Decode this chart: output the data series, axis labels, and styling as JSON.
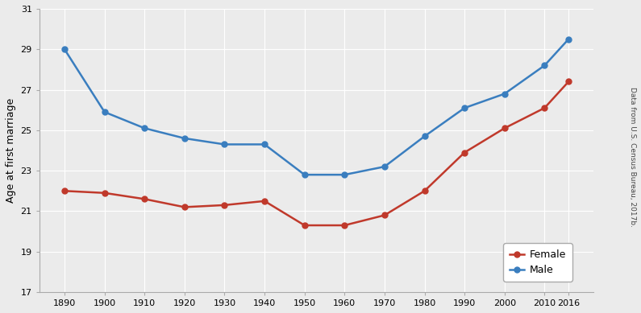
{
  "years": [
    1890,
    1900,
    1910,
    1920,
    1930,
    1940,
    1950,
    1960,
    1970,
    1980,
    1990,
    2000,
    2010,
    2016
  ],
  "female": [
    22.0,
    21.9,
    21.6,
    21.2,
    21.3,
    21.5,
    20.3,
    20.3,
    20.8,
    22.0,
    23.9,
    25.1,
    26.1,
    27.4
  ],
  "male": [
    29.0,
    25.9,
    25.1,
    24.6,
    24.3,
    24.3,
    22.8,
    22.8,
    23.2,
    24.7,
    26.1,
    26.8,
    28.2,
    29.5
  ],
  "female_color": "#c0392b",
  "male_color": "#3a7ebf",
  "bg_color": "#ebebeb",
  "plot_bg_color": "#ebebeb",
  "ylabel": "Age at first marriage",
  "source_text": "Data from U.S. Census Bureau, 2017b.",
  "ylim": [
    17,
    31
  ],
  "yticks": [
    17,
    19,
    21,
    23,
    25,
    27,
    29,
    31
  ],
  "xticks": [
    1890,
    1900,
    1910,
    1920,
    1930,
    1940,
    1950,
    1960,
    1970,
    1980,
    1990,
    2000,
    2010,
    2016
  ],
  "legend_labels": [
    "Female",
    "Male"
  ],
  "marker": "o",
  "markersize": 5,
  "linewidth": 1.8,
  "grid_color": "#ffffff",
  "spine_color": "#aaaaaa"
}
